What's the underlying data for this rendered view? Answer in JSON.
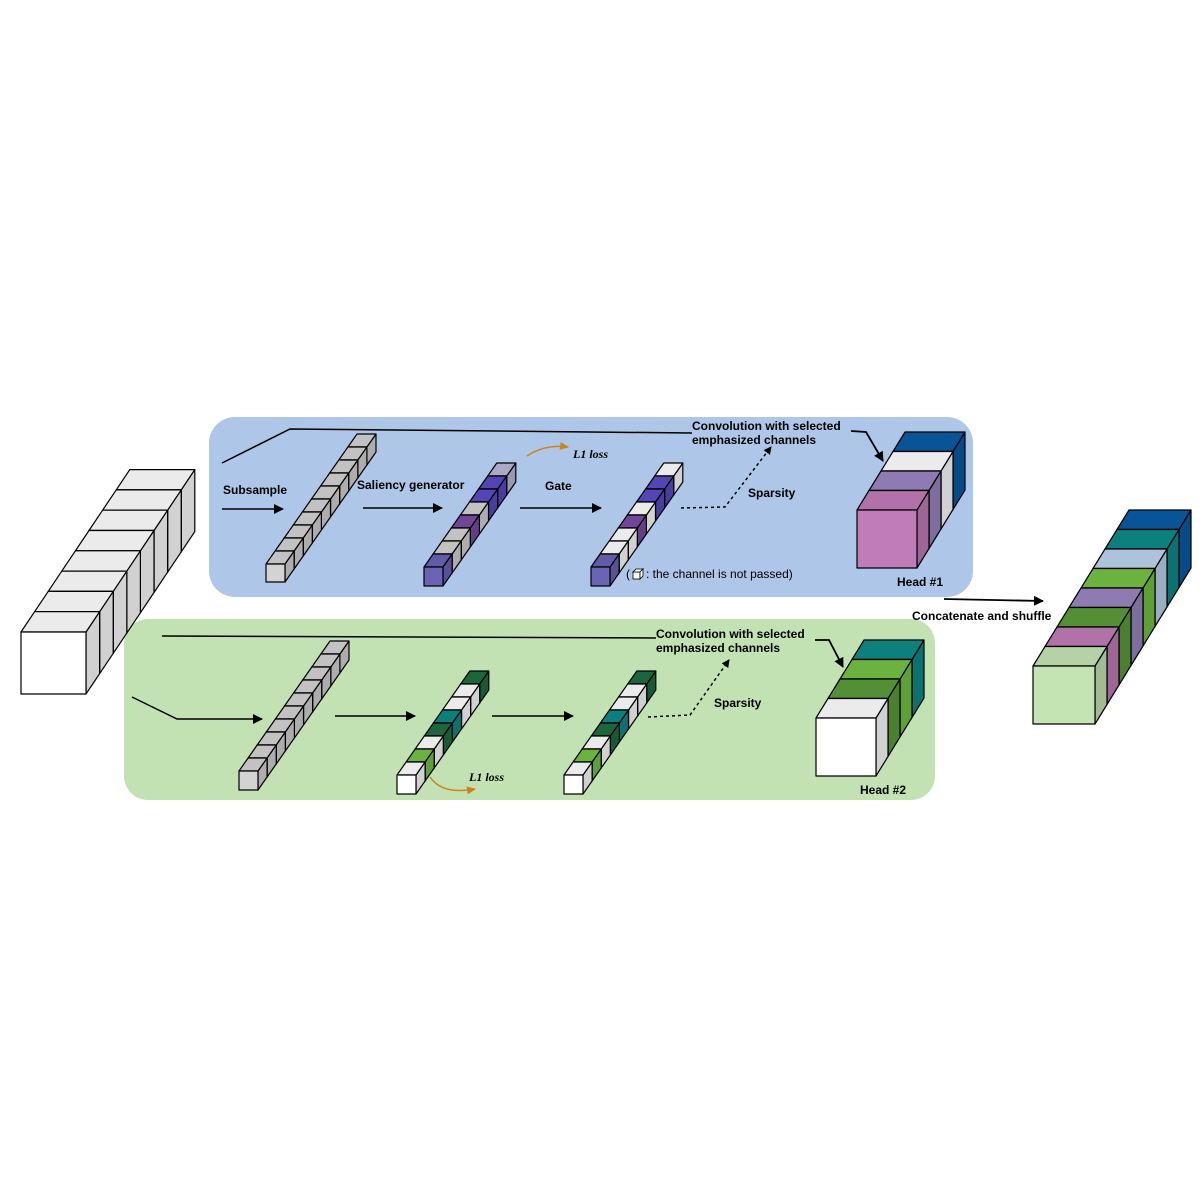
{
  "colors": {
    "head1_panel": "#aec6e8",
    "head2_panel": "#c2e2b4",
    "gray": "#d3d3d3",
    "purple_dark": "#6a64b4",
    "purple_mid": "#5a4bc4",
    "violet": "#7a4ca4",
    "lavender": "#bab8d8",
    "green_dark": "#1e6e42",
    "green_mid": "#5a9c3a",
    "green_light": "#74c244",
    "teal": "#0e8a8a",
    "blue": "#0a5aa4",
    "pink": "#c07cb8",
    "mauve": "#9a86c0",
    "mint": "#c4e4b4",
    "light_blue": "#bcd4ec",
    "arrow_orange": "#c8861a",
    "white": "#ffffff"
  },
  "labels": {
    "subsample": "Subsample",
    "saliency_generator": "Saliency generator",
    "gate": "Gate",
    "l1_loss_top": "L1 loss",
    "l1_loss_bottom": "L1 loss",
    "sparsity_top": "Sparsity",
    "sparsity_bottom": "Sparsity",
    "conv_top_line1": "Convolution with selected",
    "conv_top_line2": "emphasized channels",
    "conv_bottom_line1": "Convolution with selected",
    "conv_bottom_line2": "emphasized channels",
    "legend_open": "(",
    "legend_text": ": the channel is not passed)",
    "head1": "Head #1",
    "head2": "Head #2",
    "concat": "Concatenate and shuffle"
  },
  "stacks": {
    "input": [
      "white",
      "white",
      "white",
      "white",
      "white",
      "white",
      "white",
      "white"
    ],
    "h1_subsample": [
      "gray",
      "gray",
      "gray",
      "gray",
      "gray",
      "gray",
      "gray",
      "gray",
      "gray",
      "gray"
    ],
    "h1_saliency": [
      "purple_dark",
      "gray",
      "gray",
      "violet",
      "gray",
      "purple_mid",
      "purple_mid",
      "lavender"
    ],
    "h1_gate": [
      "purple_dark",
      "white",
      "white",
      "violet",
      "white",
      "purple_mid",
      "purple_mid",
      "white"
    ],
    "h1_head": [
      "pink",
      "mauve",
      "white",
      "blue"
    ],
    "h2_subsample": [
      "gray",
      "gray",
      "gray",
      "gray",
      "gray",
      "gray",
      "gray",
      "gray",
      "gray",
      "gray"
    ],
    "h2_saliency": [
      "white",
      "green_light",
      "white",
      "green_dark",
      "teal",
      "white",
      "white",
      "green_dark"
    ],
    "h2_gate": [
      "white",
      "green_light",
      "white",
      "green_dark",
      "teal",
      "white",
      "white",
      "green_dark"
    ],
    "h2_head": [
      "white",
      "green_mid",
      "green_light",
      "teal"
    ],
    "output": [
      "mint",
      "pink",
      "green_mid",
      "mauve",
      "green_light",
      "light_blue",
      "teal",
      "blue"
    ]
  }
}
